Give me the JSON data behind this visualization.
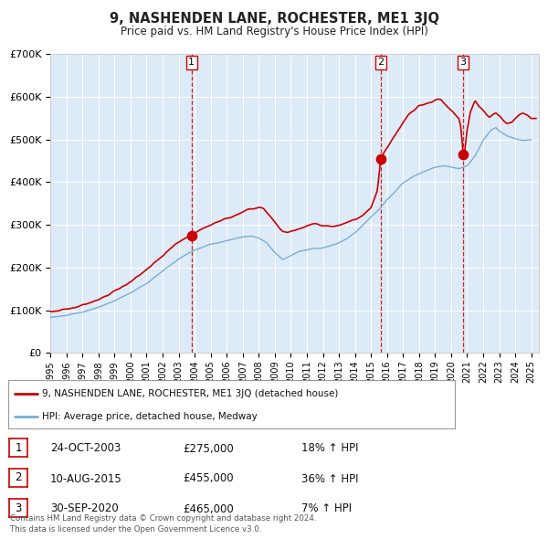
{
  "title": "9, NASHENDEN LANE, ROCHESTER, ME1 3JQ",
  "subtitle": "Price paid vs. HM Land Registry's House Price Index (HPI)",
  "hpi_label": "HPI: Average price, detached house, Medway",
  "property_label": "9, NASHENDEN LANE, ROCHESTER, ME1 3JQ (detached house)",
  "red_color": "#cc0000",
  "blue_color": "#7aaed6",
  "background_color": "#ddeaf7",
  "plot_bg": "#ffffff",
  "transactions": [
    {
      "num": 1,
      "date": "24-OCT-2003",
      "year": 2003.81,
      "price": 275000,
      "pct": "18%"
    },
    {
      "num": 2,
      "date": "10-AUG-2015",
      "year": 2015.61,
      "price": 455000,
      "pct": "36%"
    },
    {
      "num": 3,
      "date": "30-SEP-2020",
      "year": 2020.75,
      "price": 465000,
      "pct": "7%"
    }
  ],
  "ylim": [
    0,
    700000
  ],
  "yticks": [
    0,
    100000,
    200000,
    300000,
    400000,
    500000,
    600000,
    700000
  ],
  "ytick_labels": [
    "£0",
    "£100K",
    "£200K",
    "£300K",
    "£400K",
    "£500K",
    "£600K",
    "£700K"
  ],
  "xlim_start": 1995.0,
  "xlim_end": 2025.5,
  "footnote": "Contains HM Land Registry data © Crown copyright and database right 2024.\nThis data is licensed under the Open Government Licence v3.0."
}
